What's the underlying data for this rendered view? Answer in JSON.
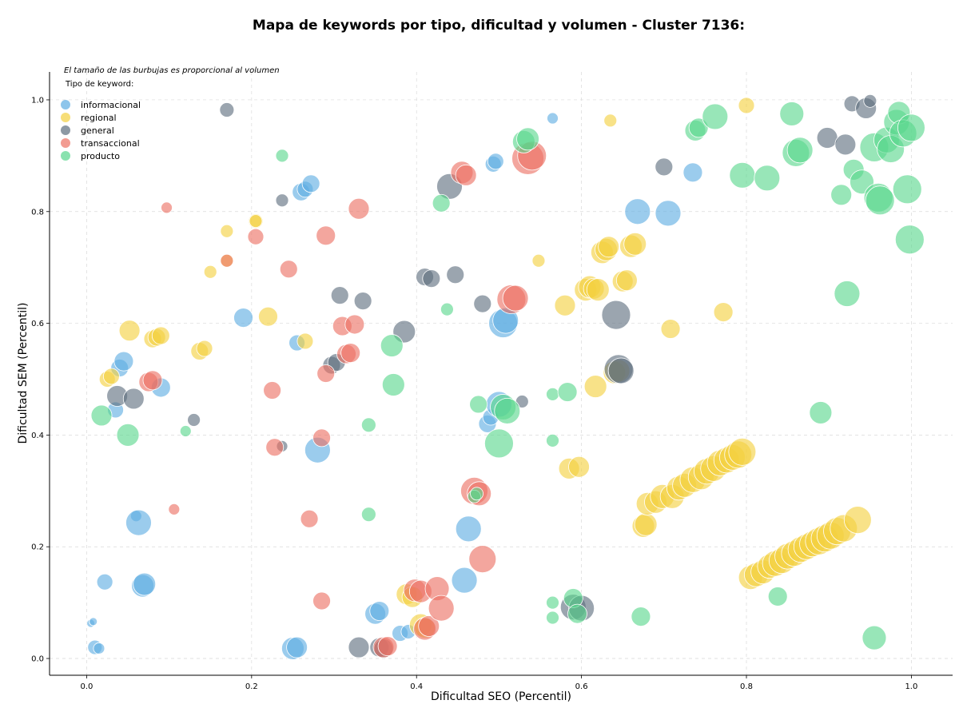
{
  "chart_data": {
    "type": "scatter",
    "title": "Mapa de keywords por tipo, dificultad y volumen - Cluster 7136:",
    "xlabel": "Dificultad SEO (Percentil)",
    "ylabel": "Dificultad SEM (Percentil)",
    "xlim": [
      -0.045,
      1.05
    ],
    "ylim": [
      -0.03,
      1.05
    ],
    "xticks": [
      "0.0",
      "0.2",
      "0.4",
      "0.6",
      "0.8",
      "1.0"
    ],
    "yticks": [
      "0.0",
      "0.2",
      "0.4",
      "0.6",
      "0.8",
      "1.0"
    ],
    "grid": true,
    "legend_position": "top-left",
    "size_note": "El tamaño de las burbujas es proporcional al volumen",
    "legend_title": "Tipo de keyword:",
    "series": [
      {
        "name": "informacional",
        "color": "#5dade2",
        "points": [
          [
            0.005,
            0.063,
            5
          ],
          [
            0.008,
            0.066,
            5
          ],
          [
            0.01,
            0.02,
            9
          ],
          [
            0.015,
            0.018,
            7
          ],
          [
            0.022,
            0.137,
            10
          ],
          [
            0.06,
            0.255,
            7
          ],
          [
            0.063,
            0.243,
            16
          ],
          [
            0.068,
            0.13,
            14
          ],
          [
            0.07,
            0.133,
            14
          ],
          [
            0.035,
            0.445,
            10
          ],
          [
            0.04,
            0.52,
            11
          ],
          [
            0.045,
            0.532,
            12
          ],
          [
            0.09,
            0.485,
            12
          ],
          [
            0.19,
            0.61,
            12
          ],
          [
            0.25,
            0.018,
            14
          ],
          [
            0.255,
            0.02,
            13
          ],
          [
            0.255,
            0.565,
            10
          ],
          [
            0.26,
            0.835,
            11
          ],
          [
            0.265,
            0.84,
            10
          ],
          [
            0.272,
            0.85,
            11
          ],
          [
            0.28,
            0.373,
            16
          ],
          [
            0.35,
            0.08,
            13
          ],
          [
            0.355,
            0.085,
            12
          ],
          [
            0.38,
            0.045,
            10
          ],
          [
            0.39,
            0.048,
            9
          ],
          [
            0.458,
            0.14,
            16
          ],
          [
            0.463,
            0.232,
            16
          ],
          [
            0.486,
            0.42,
            11
          ],
          [
            0.49,
            0.432,
            10
          ],
          [
            0.493,
            0.885,
            10
          ],
          [
            0.496,
            0.89,
            10
          ],
          [
            0.5,
            0.455,
            16
          ],
          [
            0.505,
            0.6,
            18
          ],
          [
            0.508,
            0.605,
            16
          ],
          [
            0.565,
            0.967,
            7
          ],
          [
            0.668,
            0.8,
            16
          ],
          [
            0.705,
            0.797,
            16
          ],
          [
            0.735,
            0.87,
            12
          ]
        ]
      },
      {
        "name": "regional",
        "color": "#f4d03f",
        "points": [
          [
            0.025,
            0.5,
            10
          ],
          [
            0.03,
            0.505,
            10
          ],
          [
            0.052,
            0.587,
            13
          ],
          [
            0.08,
            0.572,
            11
          ],
          [
            0.085,
            0.575,
            11
          ],
          [
            0.09,
            0.578,
            11
          ],
          [
            0.137,
            0.55,
            11
          ],
          [
            0.143,
            0.555,
            10
          ],
          [
            0.15,
            0.692,
            8
          ],
          [
            0.17,
            0.765,
            8
          ],
          [
            0.17,
            0.712,
            8
          ],
          [
            0.205,
            0.783,
            9
          ],
          [
            0.205,
            0.783,
            8
          ],
          [
            0.22,
            0.612,
            12
          ],
          [
            0.265,
            0.568,
            10
          ],
          [
            0.388,
            0.115,
            13
          ],
          [
            0.395,
            0.11,
            13
          ],
          [
            0.405,
            0.06,
            14
          ],
          [
            0.41,
            0.055,
            13
          ],
          [
            0.548,
            0.712,
            8
          ],
          [
            0.58,
            0.632,
            13
          ],
          [
            0.585,
            0.34,
            13
          ],
          [
            0.597,
            0.343,
            13
          ],
          [
            0.605,
            0.66,
            14
          ],
          [
            0.61,
            0.665,
            14
          ],
          [
            0.615,
            0.662,
            13
          ],
          [
            0.617,
            0.487,
            14
          ],
          [
            0.62,
            0.66,
            14
          ],
          [
            0.625,
            0.727,
            14
          ],
          [
            0.63,
            0.732,
            14
          ],
          [
            0.633,
            0.737,
            13
          ],
          [
            0.635,
            0.963,
            8
          ],
          [
            0.64,
            0.512,
            14
          ],
          [
            0.645,
            0.515,
            14
          ],
          [
            0.65,
            0.675,
            13
          ],
          [
            0.655,
            0.677,
            13
          ],
          [
            0.66,
            0.738,
            14
          ],
          [
            0.665,
            0.742,
            14
          ],
          [
            0.675,
            0.237,
            14
          ],
          [
            0.678,
            0.24,
            14
          ],
          [
            0.68,
            0.277,
            14
          ],
          [
            0.69,
            0.28,
            14
          ],
          [
            0.698,
            0.29,
            15
          ],
          [
            0.708,
            0.59,
            12
          ],
          [
            0.71,
            0.29,
            15
          ],
          [
            0.718,
            0.305,
            15
          ],
          [
            0.725,
            0.31,
            15
          ],
          [
            0.735,
            0.32,
            16
          ],
          [
            0.745,
            0.325,
            16
          ],
          [
            0.752,
            0.335,
            16
          ],
          [
            0.76,
            0.34,
            16
          ],
          [
            0.768,
            0.35,
            16
          ],
          [
            0.772,
            0.62,
            12
          ],
          [
            0.776,
            0.355,
            16
          ],
          [
            0.783,
            0.36,
            16
          ],
          [
            0.79,
            0.365,
            17
          ],
          [
            0.795,
            0.37,
            17
          ],
          [
            0.8,
            0.99,
            10
          ],
          [
            0.805,
            0.145,
            15
          ],
          [
            0.812,
            0.15,
            15
          ],
          [
            0.82,
            0.155,
            15
          ],
          [
            0.828,
            0.165,
            15
          ],
          [
            0.835,
            0.17,
            16
          ],
          [
            0.843,
            0.175,
            16
          ],
          [
            0.85,
            0.183,
            16
          ],
          [
            0.858,
            0.188,
            16
          ],
          [
            0.866,
            0.195,
            16
          ],
          [
            0.873,
            0.2,
            16
          ],
          [
            0.88,
            0.205,
            16
          ],
          [
            0.888,
            0.21,
            17
          ],
          [
            0.895,
            0.215,
            17
          ],
          [
            0.902,
            0.22,
            17
          ],
          [
            0.91,
            0.228,
            17
          ],
          [
            0.918,
            0.233,
            17
          ],
          [
            0.935,
            0.248,
            17
          ]
        ]
      },
      {
        "name": "general",
        "color": "#5d6d7e",
        "points": [
          [
            0.037,
            0.47,
            13
          ],
          [
            0.057,
            0.465,
            13
          ],
          [
            0.13,
            0.427,
            8
          ],
          [
            0.17,
            0.982,
            9
          ],
          [
            0.237,
            0.82,
            8
          ],
          [
            0.237,
            0.38,
            7
          ],
          [
            0.297,
            0.525,
            11
          ],
          [
            0.303,
            0.53,
            11
          ],
          [
            0.307,
            0.65,
            11
          ],
          [
            0.33,
            0.02,
            13
          ],
          [
            0.335,
            0.64,
            11
          ],
          [
            0.355,
            0.02,
            12
          ],
          [
            0.36,
            0.018,
            12
          ],
          [
            0.385,
            0.585,
            14
          ],
          [
            0.41,
            0.683,
            11
          ],
          [
            0.418,
            0.68,
            11
          ],
          [
            0.44,
            0.845,
            16
          ],
          [
            0.447,
            0.687,
            11
          ],
          [
            0.48,
            0.635,
            11
          ],
          [
            0.528,
            0.46,
            8
          ],
          [
            0.59,
            0.092,
            16
          ],
          [
            0.6,
            0.09,
            16
          ],
          [
            0.642,
            0.615,
            18
          ],
          [
            0.645,
            0.518,
            18
          ],
          [
            0.648,
            0.515,
            16
          ],
          [
            0.7,
            0.88,
            11
          ],
          [
            0.898,
            0.932,
            13
          ],
          [
            0.92,
            0.92,
            13
          ],
          [
            0.928,
            0.993,
            10
          ],
          [
            0.945,
            0.985,
            13
          ],
          [
            0.95,
            0.998,
            8
          ]
        ]
      },
      {
        "name": "transaccional",
        "color": "#ec7063",
        "points": [
          [
            0.075,
            0.495,
            12
          ],
          [
            0.08,
            0.498,
            12
          ],
          [
            0.097,
            0.807,
            7
          ],
          [
            0.106,
            0.267,
            7
          ],
          [
            0.17,
            0.712,
            8
          ],
          [
            0.205,
            0.755,
            10
          ],
          [
            0.225,
            0.48,
            11
          ],
          [
            0.228,
            0.378,
            11
          ],
          [
            0.245,
            0.697,
            11
          ],
          [
            0.27,
            0.25,
            11
          ],
          [
            0.285,
            0.103,
            11
          ],
          [
            0.285,
            0.395,
            11
          ],
          [
            0.29,
            0.757,
            12
          ],
          [
            0.29,
            0.51,
            11
          ],
          [
            0.31,
            0.595,
            12
          ],
          [
            0.315,
            0.545,
            12
          ],
          [
            0.32,
            0.547,
            12
          ],
          [
            0.325,
            0.598,
            12
          ],
          [
            0.33,
            0.805,
            13
          ],
          [
            0.36,
            0.02,
            13
          ],
          [
            0.365,
            0.022,
            12
          ],
          [
            0.398,
            0.122,
            14
          ],
          [
            0.405,
            0.12,
            14
          ],
          [
            0.41,
            0.053,
            14
          ],
          [
            0.415,
            0.058,
            13
          ],
          [
            0.425,
            0.125,
            15
          ],
          [
            0.43,
            0.09,
            16
          ],
          [
            0.455,
            0.87,
            14
          ],
          [
            0.46,
            0.865,
            13
          ],
          [
            0.47,
            0.3,
            17
          ],
          [
            0.476,
            0.295,
            15
          ],
          [
            0.48,
            0.178,
            17
          ],
          [
            0.515,
            0.643,
            18
          ],
          [
            0.52,
            0.645,
            16
          ],
          [
            0.535,
            0.895,
            20
          ],
          [
            0.54,
            0.9,
            18
          ]
        ]
      },
      {
        "name": "producto",
        "color": "#58d68d",
        "points": [
          [
            0.018,
            0.435,
            13
          ],
          [
            0.05,
            0.4,
            14
          ],
          [
            0.12,
            0.407,
            7
          ],
          [
            0.237,
            0.9,
            8
          ],
          [
            0.342,
            0.418,
            9
          ],
          [
            0.342,
            0.258,
            9
          ],
          [
            0.37,
            0.56,
            14
          ],
          [
            0.372,
            0.49,
            14
          ],
          [
            0.43,
            0.815,
            11
          ],
          [
            0.437,
            0.625,
            8
          ],
          [
            0.47,
            0.29,
            8
          ],
          [
            0.473,
            0.295,
            8
          ],
          [
            0.475,
            0.455,
            11
          ],
          [
            0.5,
            0.385,
            18
          ],
          [
            0.505,
            0.45,
            16
          ],
          [
            0.51,
            0.443,
            16
          ],
          [
            0.53,
            0.925,
            14
          ],
          [
            0.535,
            0.93,
            14
          ],
          [
            0.565,
            0.473,
            8
          ],
          [
            0.565,
            0.39,
            8
          ],
          [
            0.565,
            0.1,
            8
          ],
          [
            0.565,
            0.073,
            8
          ],
          [
            0.583,
            0.477,
            12
          ],
          [
            0.59,
            0.108,
            12
          ],
          [
            0.595,
            0.08,
            12
          ],
          [
            0.672,
            0.075,
            12
          ],
          [
            0.738,
            0.945,
            13
          ],
          [
            0.742,
            0.95,
            12
          ],
          [
            0.762,
            0.97,
            16
          ],
          [
            0.795,
            0.865,
            16
          ],
          [
            0.825,
            0.86,
            16
          ],
          [
            0.838,
            0.111,
            12
          ],
          [
            0.855,
            0.975,
            15
          ],
          [
            0.86,
            0.905,
            17
          ],
          [
            0.865,
            0.91,
            16
          ],
          [
            0.89,
            0.44,
            14
          ],
          [
            0.915,
            0.83,
            13
          ],
          [
            0.922,
            0.653,
            16
          ],
          [
            0.93,
            0.875,
            13
          ],
          [
            0.94,
            0.853,
            15
          ],
          [
            0.955,
            0.915,
            18
          ],
          [
            0.955,
            0.037,
            15
          ],
          [
            0.96,
            0.825,
            18
          ],
          [
            0.962,
            0.82,
            18
          ],
          [
            0.97,
            0.928,
            16
          ],
          [
            0.975,
            0.912,
            17
          ],
          [
            0.982,
            0.96,
            16
          ],
          [
            0.985,
            0.977,
            14
          ],
          [
            0.99,
            0.94,
            17
          ],
          [
            0.995,
            0.84,
            18
          ],
          [
            0.998,
            0.75,
            18
          ],
          [
            1.0,
            0.95,
            17
          ]
        ]
      }
    ]
  }
}
